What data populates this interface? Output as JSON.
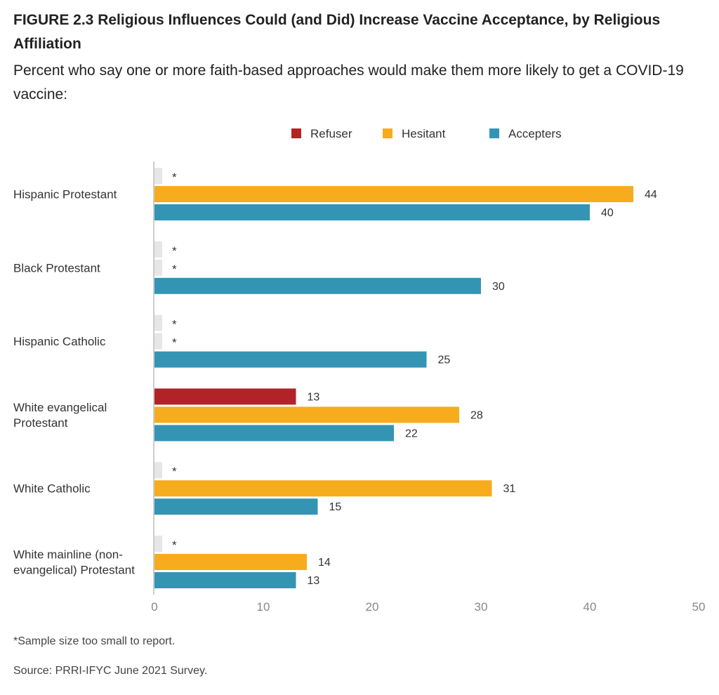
{
  "title": "FIGURE 2.3 Religious Influences Could (and Did) Increase Vaccine Acceptance, by Religious Affiliation",
  "subtitle": "Percent who say one or more faith-based approaches would make them more likely to get a COVID-19 vaccine:",
  "footnote": "*Sample size too small to report.",
  "source": "Source: PRRI-IFYC June 2021 Survey.",
  "chart_data": {
    "type": "bar",
    "orientation": "horizontal",
    "categories": [
      [
        "Hispanic Protestant"
      ],
      [
        "Black Protestant"
      ],
      [
        "Hispanic Catholic"
      ],
      [
        "White evangelical",
        "Protestant"
      ],
      [
        "White Catholic"
      ],
      [
        "White mainline (non-",
        "evangelical) Protestant"
      ]
    ],
    "series": [
      {
        "name": "Refuser",
        "color": "#b22328",
        "values": [
          null,
          null,
          null,
          13,
          null,
          null
        ]
      },
      {
        "name": "Hesitant",
        "color": "#f6ac1c",
        "values": [
          44,
          null,
          null,
          28,
          31,
          14
        ]
      },
      {
        "name": "Accepters",
        "color": "#3494b4",
        "values": [
          40,
          30,
          25,
          22,
          15,
          13
        ]
      }
    ],
    "missing_marker": "*",
    "missing_color": "#e6e6e6",
    "xlim": [
      0,
      50
    ],
    "xticks": [
      0,
      10,
      20,
      30,
      40,
      50
    ],
    "legend_position": "top"
  }
}
